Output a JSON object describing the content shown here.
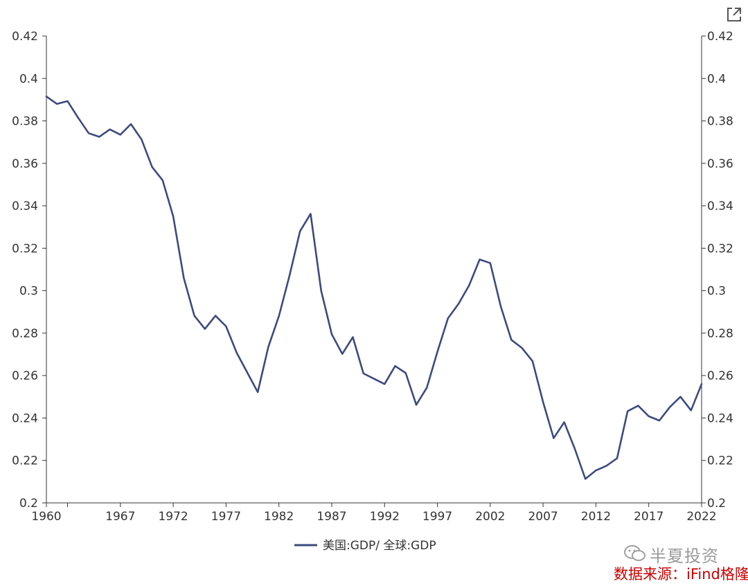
{
  "chart_data": {
    "type": "line",
    "title": "",
    "xlabel": "",
    "ylabel": "",
    "x": [
      1960,
      1961,
      1962,
      1963,
      1964,
      1965,
      1966,
      1967,
      1968,
      1969,
      1970,
      1971,
      1972,
      1973,
      1974,
      1975,
      1976,
      1977,
      1978,
      1979,
      1980,
      1981,
      1982,
      1983,
      1984,
      1985,
      1986,
      1987,
      1988,
      1989,
      1990,
      1991,
      1992,
      1993,
      1994,
      1995,
      1996,
      1997,
      1998,
      1999,
      2000,
      2001,
      2002,
      2003,
      2004,
      2005,
      2006,
      2007,
      2008,
      2009,
      2010,
      2011,
      2012,
      2013,
      2014,
      2015,
      2016,
      2017,
      2018,
      2019,
      2020,
      2021,
      2022
    ],
    "series": [
      {
        "name": "美国:GDP/ 全球:GDP",
        "color": "#3c4a7e",
        "values": [
          0.3915,
          0.388,
          0.3893,
          0.3815,
          0.3742,
          0.3725,
          0.376,
          0.3735,
          0.3785,
          0.3713,
          0.3583,
          0.352,
          0.335,
          0.306,
          0.2882,
          0.282,
          0.2882,
          0.2832,
          0.2708,
          0.2615,
          0.2522,
          0.2735,
          0.288,
          0.307,
          0.328,
          0.3362,
          0.3,
          0.2795,
          0.2702,
          0.2781,
          0.261,
          0.2585,
          0.256,
          0.2645,
          0.2612,
          0.2462,
          0.2543,
          0.2712,
          0.287,
          0.2938,
          0.3025,
          0.3147,
          0.313,
          0.2925,
          0.2768,
          0.273,
          0.2668,
          0.2475,
          0.2305,
          0.238,
          0.2255,
          0.2113,
          0.2153,
          0.2175,
          0.221,
          0.2432,
          0.2458,
          0.2408,
          0.2388,
          0.2452,
          0.25,
          0.2436,
          0.256
        ]
      }
    ],
    "ylim": [
      0.2,
      0.42
    ],
    "yticks": [
      "0.2",
      "0.22",
      "0.24",
      "0.26",
      "0.28",
      "0.3",
      "0.32",
      "0.34",
      "0.36",
      "0.38",
      "0.4",
      "0.42"
    ],
    "xticks": [
      "1960",
      "1967",
      "1972",
      "1977",
      "1982",
      "1987",
      "1992",
      "1997",
      "2002",
      "2007",
      "2012",
      "2017",
      "2022"
    ],
    "grid": false,
    "legend": "bottom-center",
    "dual_y_axis": true
  },
  "watermark": {
    "brand": "半夏投资",
    "source": "数据来源：iFind格隆汇"
  },
  "icons": {
    "expand": "expand-icon",
    "wechat": "wechat-icon"
  }
}
